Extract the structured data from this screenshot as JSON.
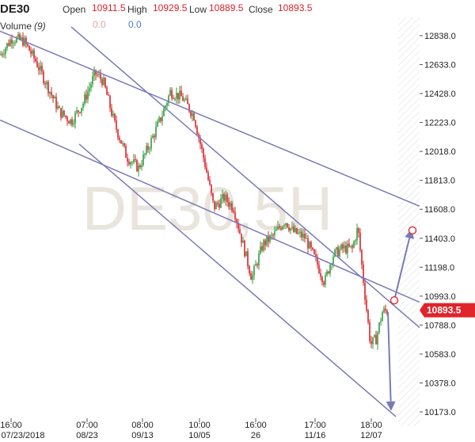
{
  "header": {
    "symbol": "DE30",
    "open_label": "Open",
    "open_value": "10911.5",
    "high_label": "High",
    "high_value": "10929.5",
    "low_label": "Low",
    "low_value": "10889.5",
    "close_label": "Close",
    "close_value": "10893.5",
    "volume_label": "Volume",
    "volume_period": "(9)",
    "volume_value_1": "0.0",
    "volume_value_2": "0.0"
  },
  "watermark": "DE30,5H",
  "price_tag": "10893.5",
  "colors": {
    "bull": "#2e9e3a",
    "bear": "#d9232a",
    "trendline": "#7a7ab8",
    "price_tag": "#e0242b"
  },
  "chart_data": {
    "type": "candlestick",
    "y_axis": {
      "ticks": [
        12838.0,
        12633.0,
        12428.0,
        12223.0,
        12018.0,
        11813.0,
        11608.0,
        11403.0,
        11198.0,
        10993.0,
        10788.0,
        10583.0,
        10378.0,
        10173.0
      ]
    },
    "x_axis": {
      "ticks": [
        {
          "time": "16:00",
          "date": "07/23/2018"
        },
        {
          "time": "07:00",
          "date": "08/23"
        },
        {
          "time": "08:00",
          "date": "09/13"
        },
        {
          "time": "10:00",
          "date": "10/05"
        },
        {
          "time": "16:00",
          "date": "26"
        },
        {
          "time": "17:00",
          "date": "11/16"
        },
        {
          "time": "18:00",
          "date": "12/07"
        }
      ]
    },
    "close_path": [
      [
        0,
        12700
      ],
      [
        15,
        12820
      ],
      [
        30,
        12800
      ],
      [
        45,
        12660
      ],
      [
        60,
        12480
      ],
      [
        75,
        12300
      ],
      [
        90,
        12230
      ],
      [
        105,
        12360
      ],
      [
        120,
        12570
      ],
      [
        130,
        12520
      ],
      [
        145,
        12210
      ],
      [
        160,
        11980
      ],
      [
        175,
        11900
      ],
      [
        190,
        12080
      ],
      [
        205,
        12280
      ],
      [
        215,
        12440
      ],
      [
        230,
        12400
      ],
      [
        245,
        12270
      ],
      [
        260,
        11900
      ],
      [
        270,
        11620
      ],
      [
        283,
        11690
      ],
      [
        295,
        11620
      ],
      [
        305,
        11400
      ],
      [
        318,
        11120
      ],
      [
        332,
        11360
      ],
      [
        345,
        11420
      ],
      [
        360,
        11530
      ],
      [
        370,
        11450
      ],
      [
        385,
        11410
      ],
      [
        400,
        11230
      ],
      [
        410,
        11090
      ],
      [
        420,
        11280
      ],
      [
        432,
        11330
      ],
      [
        445,
        11330
      ],
      [
        452,
        11480
      ],
      [
        460,
        11050
      ],
      [
        468,
        10650
      ],
      [
        475,
        10690
      ],
      [
        483,
        10880
      ],
      [
        490,
        10893.5
      ]
    ],
    "current_price": 10893.5,
    "trendlines": [
      {
        "from": [
          0,
          12870
        ],
        "to": [
          530,
          11630
        ]
      },
      {
        "from": [
          0,
          12240
        ],
        "to": [
          530,
          10950
        ]
      },
      {
        "from": [
          90,
          12900
        ],
        "to": [
          530,
          10770
        ]
      },
      {
        "from": [
          100,
          12070
        ],
        "to": [
          500,
          10140
        ]
      }
    ],
    "projections": [
      {
        "from": [
          498,
          10963
        ],
        "to": [
          520,
          11470
        ],
        "marker": true
      },
      {
        "from": [
          490,
          10880
        ],
        "to": [
          494,
          10180
        ]
      }
    ]
  }
}
